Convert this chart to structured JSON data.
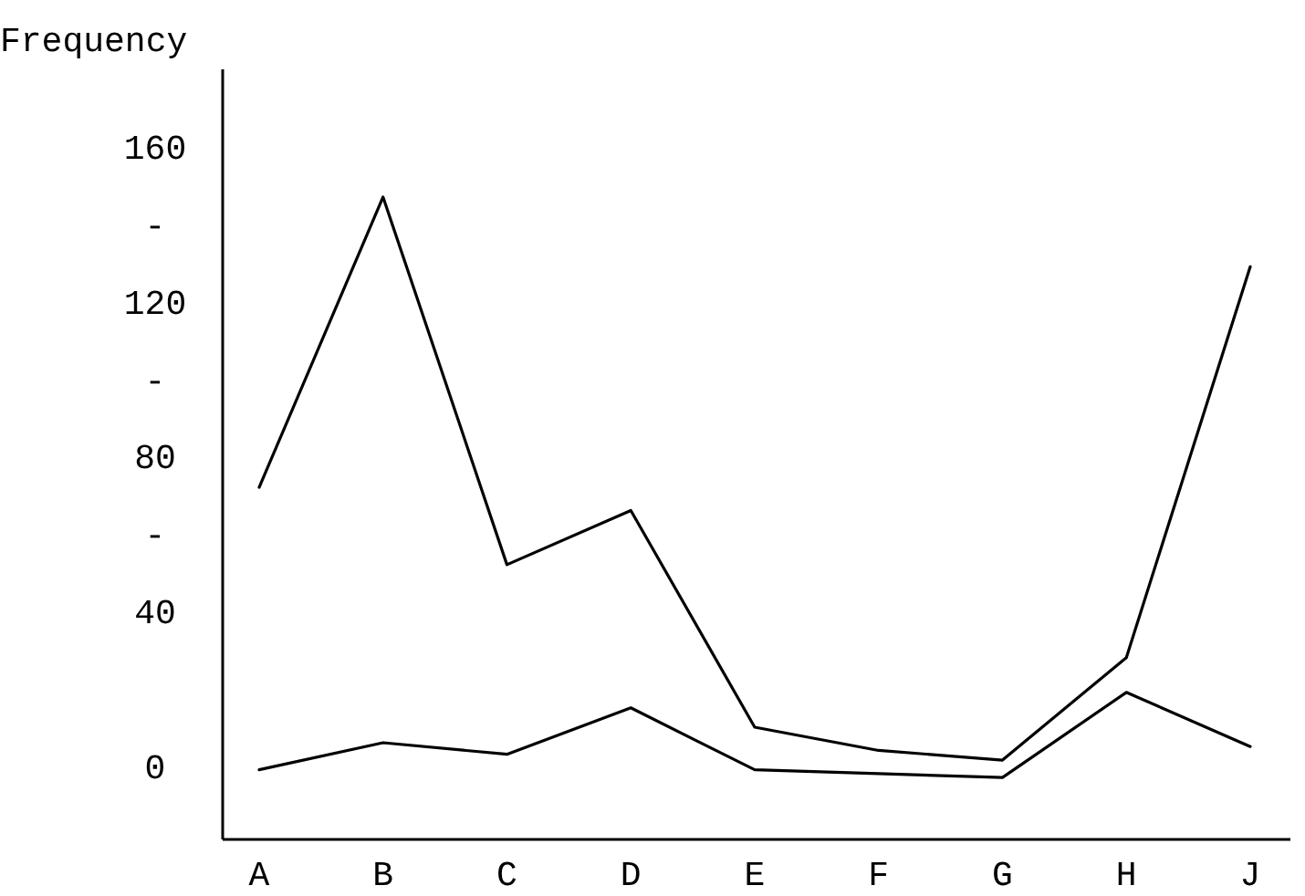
{
  "chart_data": {
    "type": "line",
    "ylabel": "Frequency",
    "categories": [
      "A",
      "B",
      "C",
      "D",
      "E",
      "F",
      "G",
      "H",
      "J"
    ],
    "series": [
      {
        "color": "#000000",
        "values": [
          72,
          147,
          52,
          66,
          10,
          4,
          1.5,
          28,
          129
        ]
      },
      {
        "color": "#000000",
        "values": [
          -1,
          6,
          3,
          15,
          -1,
          -2,
          -3,
          19,
          5
        ]
      }
    ],
    "ylim": [
      -19,
      180
    ],
    "yticks": [
      0,
      40,
      {
        "value": 60,
        "label": "-"
      },
      80,
      {
        "value": 100,
        "label": "-"
      },
      120,
      {
        "value": 140,
        "label": "-"
      },
      160
    ],
    "grid": false,
    "marker": "none",
    "line_style": "solid"
  }
}
